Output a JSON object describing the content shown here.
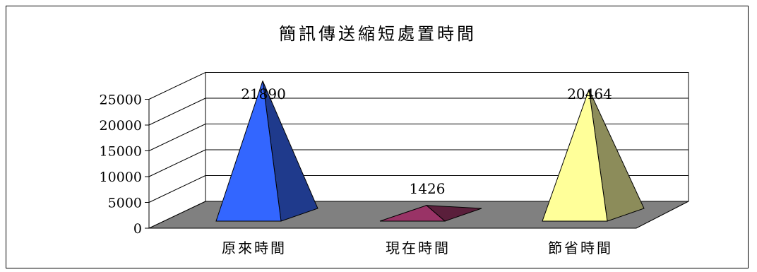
{
  "chart_data": {
    "type": "bar",
    "subtype": "3d-pyramid",
    "title": "簡訊傳送縮短處置時間",
    "categories": [
      "原來時間",
      "現在時間",
      "節省時間"
    ],
    "values": [
      21890,
      1426,
      20464
    ],
    "data_labels": [
      "21890",
      "1426",
      "20464"
    ],
    "y_ticks": [
      "0",
      "5000",
      "10000",
      "15000",
      "20000",
      "25000"
    ],
    "ylim": [
      0,
      25000
    ],
    "grid": true,
    "legend": false,
    "colors": {
      "pyramids": [
        {
          "front": "#3366ff",
          "side": "#1f3a8c"
        },
        {
          "front": "#993366",
          "side": "#5a1f3b"
        },
        {
          "front": "#ffff99",
          "side": "#8c8c5a"
        }
      ],
      "floor": "#808080",
      "gridline": "#000000"
    }
  }
}
